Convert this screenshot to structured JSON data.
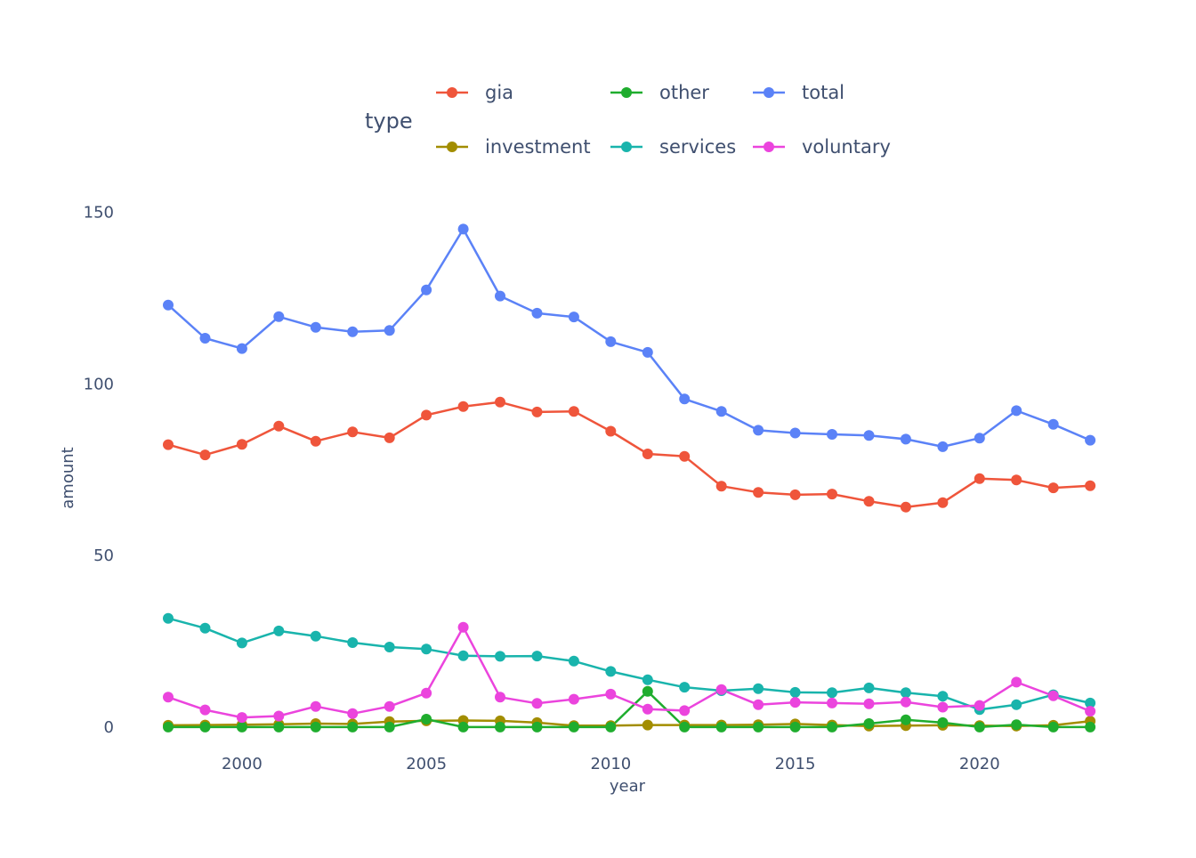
{
  "chart_data": {
    "type": "line",
    "xlabel": "year",
    "ylabel": "amount",
    "xlim": [
      1997.3,
      2023.6
    ],
    "ylim": [
      -6,
      160
    ],
    "x_ticks": [
      2000,
      2005,
      2010,
      2015,
      2020
    ],
    "y_ticks": [
      0,
      50,
      100,
      150
    ],
    "grid": false,
    "legend": {
      "title": "type",
      "placement": "top"
    },
    "x": [
      1998,
      1999,
      2000,
      2001,
      2002,
      2003,
      2004,
      2005,
      2006,
      2007,
      2008,
      2009,
      2010,
      2011,
      2012,
      2013,
      2014,
      2015,
      2016,
      2017,
      2018,
      2019,
      2020,
      2021,
      2022,
      2023
    ],
    "series": [
      {
        "name": "gia",
        "color": "#ef553b",
        "values": [
          82.3,
          79.3,
          82.4,
          87.7,
          83.3,
          86.0,
          84.3,
          90.9,
          93.4,
          94.7,
          91.8,
          92.0,
          86.2,
          79.6,
          78.9,
          70.2,
          68.4,
          67.7,
          67.9,
          65.8,
          64.1,
          65.4,
          72.4,
          72.0,
          69.7,
          70.3
        ]
      },
      {
        "name": "investment",
        "color": "#a28d00",
        "values": [
          0.5,
          0.6,
          0.7,
          0.8,
          1.0,
          0.9,
          1.6,
          1.8,
          1.9,
          1.8,
          1.3,
          0.4,
          0.4,
          0.6,
          0.6,
          0.6,
          0.7,
          0.9,
          0.6,
          0.3,
          0.4,
          0.5,
          0.4,
          0.3,
          0.5,
          1.7
        ]
      },
      {
        "name": "other",
        "color": "#1fad2e",
        "values": [
          0.0,
          0.0,
          0.0,
          0.0,
          0.0,
          0.0,
          0.0,
          2.3,
          0.0,
          0.0,
          0.0,
          0.0,
          0.0,
          10.4,
          0.0,
          0.0,
          0.0,
          0.0,
          0.0,
          1.0,
          2.1,
          1.3,
          0.0,
          0.7,
          0.0,
          0.0
        ]
      },
      {
        "name": "services",
        "color": "#19b4ac",
        "values": [
          31.7,
          28.8,
          24.5,
          28.0,
          26.5,
          24.6,
          23.3,
          22.7,
          20.8,
          20.6,
          20.7,
          19.2,
          16.2,
          13.8,
          11.6,
          10.6,
          11.2,
          10.1,
          10.0,
          11.4,
          10.0,
          9.0,
          5.1,
          6.5,
          9.4,
          7.0
        ]
      },
      {
        "name": "total",
        "color": "#5b82f7",
        "values": [
          123.0,
          113.3,
          110.3,
          119.6,
          116.5,
          115.2,
          115.6,
          127.4,
          145.1,
          125.6,
          120.6,
          119.5,
          112.3,
          109.2,
          95.6,
          92.0,
          86.5,
          85.7,
          85.3,
          85.0,
          83.9,
          81.7,
          84.2,
          92.2,
          88.2,
          83.6
        ]
      },
      {
        "name": "voluntary",
        "color": "#eb44dd",
        "values": [
          8.7,
          5.0,
          2.8,
          3.2,
          6.0,
          3.9,
          6.0,
          9.9,
          29.1,
          8.7,
          6.9,
          8.1,
          9.6,
          5.2,
          4.8,
          10.9,
          6.5,
          7.2,
          7.0,
          6.8,
          7.3,
          5.8,
          6.3,
          13.1,
          9.1,
          4.6
        ]
      }
    ]
  }
}
